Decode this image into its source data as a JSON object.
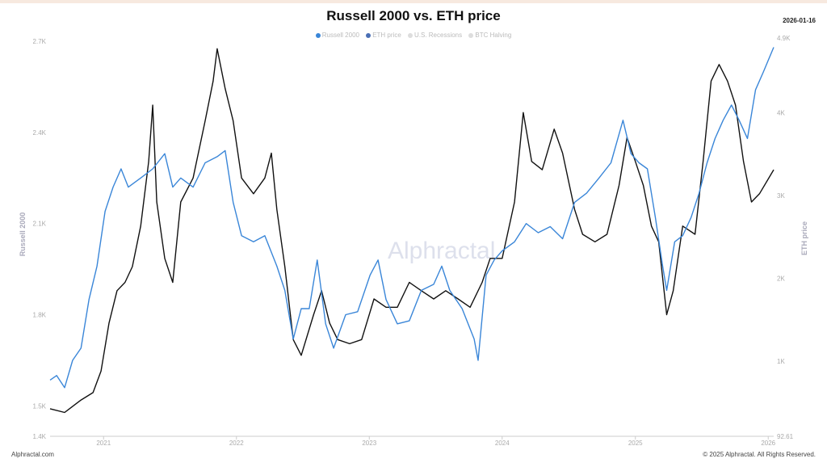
{
  "header": {
    "title": "Russell 2000 vs. ETH price",
    "date": "2026-01-16"
  },
  "footer": {
    "left": "Alphractal.com",
    "right": "© 2025 Alphractal. All Rights Reserved."
  },
  "watermark": "Alphractal",
  "colors": {
    "russell": "#3a86d8",
    "eth": "#111111",
    "eth_marker": "#4a6fb5",
    "legend_inactive": "#cccccc"
  },
  "chart_data": {
    "type": "line",
    "title": "Russell 2000 vs. ETH price",
    "legend": {
      "placement": "top-center",
      "entries": [
        "Russell 2000",
        "ETH price",
        "U.S. Recessions",
        "BTC Halving"
      ]
    },
    "x_ticks": [
      "2021",
      "2022",
      "2023",
      "2024",
      "2025",
      "2026"
    ],
    "xlim": [
      "2020-08-07",
      "2026-01-16"
    ],
    "y_left": {
      "label": "Russell 2000",
      "ticks": [
        "2.7K",
        "2.4K",
        "2.1K",
        "1.8K",
        "1.5K",
        "1.4K"
      ],
      "lim": [
        1400,
        2700
      ]
    },
    "y_right": {
      "label": "ETH price",
      "ticks": [
        "4.9K",
        "4K",
        "3K",
        "2K",
        "1K",
        "92.61"
      ],
      "lim": [
        92.61,
        4900
      ]
    },
    "grid": false,
    "series": [
      {
        "name": "Russell 2000",
        "axis": "left",
        "points": [
          [
            "2020-08-07",
            1585
          ],
          [
            "2020-08-25",
            1600
          ],
          [
            "2020-09-16",
            1560
          ],
          [
            "2020-10-08",
            1650
          ],
          [
            "2020-10-31",
            1690
          ],
          [
            "2020-11-22",
            1850
          ],
          [
            "2020-12-14",
            1960
          ],
          [
            "2021-01-05",
            2140
          ],
          [
            "2021-01-27",
            2220
          ],
          [
            "2021-02-18",
            2280
          ],
          [
            "2021-03-10",
            2220
          ],
          [
            "2021-04-13",
            2250
          ],
          [
            "2021-05-16",
            2280
          ],
          [
            "2021-06-18",
            2330
          ],
          [
            "2021-07-10",
            2220
          ],
          [
            "2021-08-01",
            2250
          ],
          [
            "2021-09-04",
            2220
          ],
          [
            "2021-10-07",
            2300
          ],
          [
            "2021-11-09",
            2320
          ],
          [
            "2021-12-01",
            2340
          ],
          [
            "2021-12-23",
            2170
          ],
          [
            "2022-01-15",
            2060
          ],
          [
            "2022-02-17",
            2040
          ],
          [
            "2022-03-20",
            2060
          ],
          [
            "2022-04-22",
            1960
          ],
          [
            "2022-05-14",
            1880
          ],
          [
            "2022-06-06",
            1720
          ],
          [
            "2022-06-28",
            1820
          ],
          [
            "2022-07-20",
            1820
          ],
          [
            "2022-08-11",
            1980
          ],
          [
            "2022-09-03",
            1770
          ],
          [
            "2022-09-25",
            1690
          ],
          [
            "2022-10-28",
            1800
          ],
          [
            "2022-11-30",
            1810
          ],
          [
            "2023-01-03",
            1930
          ],
          [
            "2023-01-25",
            1980
          ],
          [
            "2023-02-16",
            1850
          ],
          [
            "2023-03-19",
            1770
          ],
          [
            "2023-04-21",
            1780
          ],
          [
            "2023-05-24",
            1880
          ],
          [
            "2023-06-27",
            1900
          ],
          [
            "2023-07-19",
            1960
          ],
          [
            "2023-08-10",
            1880
          ],
          [
            "2023-09-13",
            1820
          ],
          [
            "2023-10-16",
            1720
          ],
          [
            "2023-10-27",
            1650
          ],
          [
            "2023-11-18",
            1930
          ],
          [
            "2023-12-10",
            1980
          ],
          [
            "2024-01-01",
            2010
          ],
          [
            "2024-02-04",
            2040
          ],
          [
            "2024-03-07",
            2100
          ],
          [
            "2024-04-09",
            2070
          ],
          [
            "2024-05-12",
            2090
          ],
          [
            "2024-06-15",
            2050
          ],
          [
            "2024-07-18",
            2170
          ],
          [
            "2024-08-20",
            2200
          ],
          [
            "2024-09-23",
            2250
          ],
          [
            "2024-10-26",
            2300
          ],
          [
            "2024-11-28",
            2440
          ],
          [
            "2024-12-20",
            2330
          ],
          [
            "2025-01-11",
            2300
          ],
          [
            "2025-02-03",
            2280
          ],
          [
            "2025-02-25",
            2120
          ],
          [
            "2025-03-17",
            1960
          ],
          [
            "2025-03-28",
            1880
          ],
          [
            "2025-04-19",
            2040
          ],
          [
            "2025-05-11",
            2060
          ],
          [
            "2025-06-03",
            2120
          ],
          [
            "2025-06-25",
            2200
          ],
          [
            "2025-07-17",
            2300
          ],
          [
            "2025-08-08",
            2380
          ],
          [
            "2025-08-30",
            2440
          ],
          [
            "2025-09-22",
            2490
          ],
          [
            "2025-10-13",
            2440
          ],
          [
            "2025-11-05",
            2380
          ],
          [
            "2025-11-27",
            2540
          ],
          [
            "2025-12-19",
            2600
          ],
          [
            "2026-01-16",
            2680
          ]
        ]
      },
      {
        "name": "ETH price",
        "axis": "right",
        "points": [
          [
            "2020-08-07",
            425
          ],
          [
            "2020-09-16",
            380
          ],
          [
            "2020-10-31",
            530
          ],
          [
            "2020-12-03",
            620
          ],
          [
            "2020-12-25",
            880
          ],
          [
            "2021-01-16",
            1460
          ],
          [
            "2021-02-07",
            1850
          ],
          [
            "2021-03-01",
            1950
          ],
          [
            "2021-03-21",
            2140
          ],
          [
            "2021-04-13",
            2630
          ],
          [
            "2021-05-05",
            3410
          ],
          [
            "2021-05-16",
            4090
          ],
          [
            "2021-05-27",
            2920
          ],
          [
            "2021-06-18",
            2240
          ],
          [
            "2021-07-10",
            1950
          ],
          [
            "2021-08-01",
            2920
          ],
          [
            "2021-09-04",
            3210
          ],
          [
            "2021-10-07",
            3900
          ],
          [
            "2021-10-29",
            4380
          ],
          [
            "2021-11-09",
            4770
          ],
          [
            "2021-12-01",
            4290
          ],
          [
            "2021-12-23",
            3900
          ],
          [
            "2022-01-15",
            3210
          ],
          [
            "2022-02-17",
            3020
          ],
          [
            "2022-03-20",
            3210
          ],
          [
            "2022-04-07",
            3510
          ],
          [
            "2022-04-22",
            2830
          ],
          [
            "2022-05-14",
            2140
          ],
          [
            "2022-06-06",
            1260
          ],
          [
            "2022-06-28",
            1070
          ],
          [
            "2022-08-01",
            1560
          ],
          [
            "2022-08-23",
            1850
          ],
          [
            "2022-09-14",
            1460
          ],
          [
            "2022-10-06",
            1260
          ],
          [
            "2022-11-08",
            1210
          ],
          [
            "2022-12-11",
            1260
          ],
          [
            "2023-01-14",
            1750
          ],
          [
            "2023-02-16",
            1650
          ],
          [
            "2023-03-19",
            1650
          ],
          [
            "2023-04-21",
            1950
          ],
          [
            "2023-05-24",
            1850
          ],
          [
            "2023-06-27",
            1750
          ],
          [
            "2023-07-30",
            1850
          ],
          [
            "2023-09-02",
            1750
          ],
          [
            "2023-10-05",
            1650
          ],
          [
            "2023-11-07",
            1950
          ],
          [
            "2023-11-29",
            2240
          ],
          [
            "2024-01-01",
            2240
          ],
          [
            "2024-02-04",
            2920
          ],
          [
            "2024-02-28",
            4000
          ],
          [
            "2024-03-22",
            3410
          ],
          [
            "2024-04-20",
            3310
          ],
          [
            "2024-05-23",
            3800
          ],
          [
            "2024-06-15",
            3510
          ],
          [
            "2024-07-18",
            2830
          ],
          [
            "2024-08-09",
            2530
          ],
          [
            "2024-09-12",
            2440
          ],
          [
            "2024-10-15",
            2530
          ],
          [
            "2024-11-17",
            3120
          ],
          [
            "2024-12-09",
            3700
          ],
          [
            "2025-01-01",
            3410
          ],
          [
            "2025-01-23",
            3120
          ],
          [
            "2025-02-14",
            2630
          ],
          [
            "2025-03-06",
            2440
          ],
          [
            "2025-03-28",
            1560
          ],
          [
            "2025-04-15",
            1850
          ],
          [
            "2025-05-11",
            2630
          ],
          [
            "2025-06-14",
            2530
          ],
          [
            "2025-07-06",
            3410
          ],
          [
            "2025-07-28",
            4380
          ],
          [
            "2025-08-19",
            4580
          ],
          [
            "2025-09-11",
            4380
          ],
          [
            "2025-10-03",
            4090
          ],
          [
            "2025-10-25",
            3410
          ],
          [
            "2025-11-16",
            2920
          ],
          [
            "2025-12-08",
            3020
          ],
          [
            "2026-01-16",
            3310
          ]
        ]
      }
    ]
  }
}
